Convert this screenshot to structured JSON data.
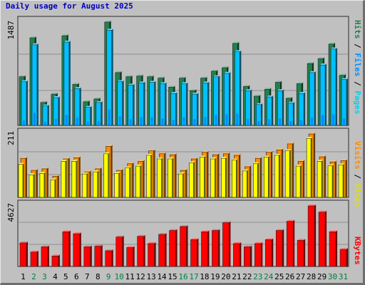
{
  "title": "Daily usage for August 2025",
  "colors": {
    "hits": "#208050",
    "files": "#00c0ff",
    "pages": "#00d0f0",
    "visits": "#ff8c00",
    "sites": "#ffff00",
    "kbytes": "#ff0000",
    "weekend_tick": "#008040",
    "weekday_tick": "#000000",
    "title": "#0000c0"
  },
  "panels": {
    "top": {
      "max_label": "1487",
      "legend": [
        "Pages",
        "Files",
        "Hits"
      ]
    },
    "middle": {
      "max_label": "211",
      "legend": [
        "Sites",
        "Visits"
      ]
    },
    "bottom": {
      "max_label": "4627",
      "legend": [
        "KBytes"
      ]
    }
  },
  "chart_data": [
    {
      "type": "bar",
      "title": "Daily usage for August 2025",
      "categories": [
        "1",
        "2",
        "3",
        "4",
        "5",
        "6",
        "7",
        "8",
        "9",
        "10",
        "11",
        "12",
        "13",
        "14",
        "15",
        "16",
        "17",
        "18",
        "19",
        "20",
        "21",
        "22",
        "23",
        "24",
        "25",
        "26",
        "27",
        "28",
        "29",
        "30",
        "31"
      ],
      "weekend_days": [
        2,
        3,
        9,
        10,
        16,
        17,
        23,
        24,
        30,
        31
      ],
      "ylim": [
        0,
        1487
      ],
      "series": [
        {
          "name": "Hits",
          "values": [
            700,
            1260,
            330,
            450,
            1290,
            590,
            340,
            380,
            1487,
            760,
            700,
            710,
            700,
            680,
            550,
            680,
            500,
            680,
            780,
            830,
            1180,
            560,
            420,
            520,
            620,
            390,
            600,
            890,
            960,
            1170,
            720
          ]
        },
        {
          "name": "Files",
          "values": [
            630,
            1160,
            280,
            400,
            1200,
            530,
            260,
            330,
            1370,
            630,
            580,
            610,
            620,
            600,
            460,
            600,
            450,
            610,
            700,
            750,
            1060,
            500,
            300,
            410,
            500,
            320,
            460,
            760,
            870,
            1100,
            660
          ]
        },
        {
          "name": "Pages",
          "values": [
            70,
            180,
            50,
            90,
            150,
            110,
            60,
            60,
            230,
            130,
            90,
            120,
            120,
            100,
            80,
            120,
            90,
            120,
            150,
            160,
            170,
            90,
            60,
            90,
            100,
            60,
            80,
            110,
            150,
            160,
            100
          ]
        }
      ]
    },
    {
      "type": "bar",
      "categories": [
        "1",
        "2",
        "3",
        "4",
        "5",
        "6",
        "7",
        "8",
        "9",
        "10",
        "11",
        "12",
        "13",
        "14",
        "15",
        "16",
        "17",
        "18",
        "19",
        "20",
        "21",
        "22",
        "23",
        "24",
        "25",
        "26",
        "27",
        "28",
        "29",
        "30",
        "31"
      ],
      "ylim": [
        0,
        211
      ],
      "series": [
        {
          "name": "Visits",
          "values": [
            130,
            90,
            95,
            70,
            128,
            132,
            85,
            95,
            170,
            90,
            112,
            120,
            155,
            145,
            142,
            90,
            128,
            150,
            142,
            145,
            140,
            102,
            130,
            150,
            158,
            178,
            120,
            211,
            135,
            118,
            122
          ]
        },
        {
          "name": "Sites",
          "values": [
            110,
            75,
            80,
            58,
            120,
            120,
            78,
            85,
            145,
            80,
            98,
            104,
            140,
            128,
            128,
            78,
            115,
            134,
            128,
            130,
            124,
            88,
            112,
            134,
            140,
            155,
            104,
            196,
            120,
            105,
            108
          ]
        }
      ]
    },
    {
      "type": "bar",
      "categories": [
        "1",
        "2",
        "3",
        "4",
        "5",
        "6",
        "7",
        "8",
        "9",
        "10",
        "11",
        "12",
        "13",
        "14",
        "15",
        "16",
        "17",
        "18",
        "19",
        "20",
        "21",
        "22",
        "23",
        "24",
        "25",
        "26",
        "27",
        "28",
        "29",
        "30",
        "31"
      ],
      "ylim": [
        0,
        4627
      ],
      "series": [
        {
          "name": "KBytes",
          "values": [
            1800,
            1100,
            1500,
            800,
            2650,
            2500,
            1500,
            1550,
            1200,
            2250,
            1450,
            2300,
            1750,
            2450,
            2750,
            3050,
            2050,
            2650,
            2750,
            3350,
            1750,
            1500,
            1750,
            2050,
            2750,
            3450,
            2000,
            4627,
            4150,
            2650,
            1300
          ]
        }
      ]
    }
  ]
}
